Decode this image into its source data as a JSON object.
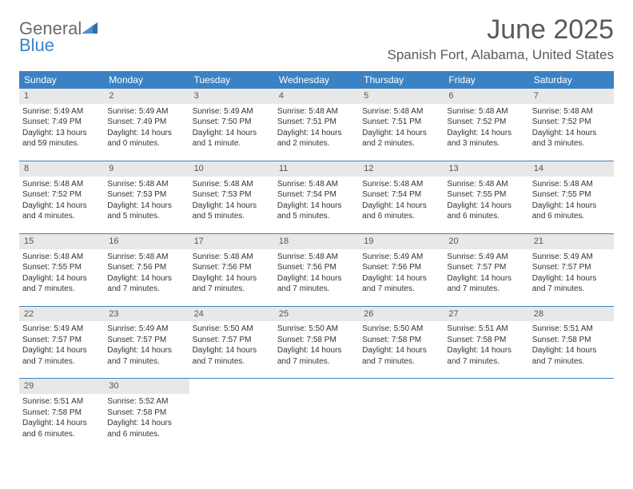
{
  "logo": {
    "text1": "General",
    "text2": "Blue"
  },
  "title": "June 2025",
  "location": "Spanish Fort, Alabama, United States",
  "colors": {
    "header_bg": "#3b82c4",
    "daynum_bg": "#e8e8e8",
    "text": "#333333",
    "title": "#5a5a5a"
  },
  "dayNames": [
    "Sunday",
    "Monday",
    "Tuesday",
    "Wednesday",
    "Thursday",
    "Friday",
    "Saturday"
  ],
  "weeks": [
    [
      {
        "n": "1",
        "sr": "Sunrise: 5:49 AM",
        "ss": "Sunset: 7:49 PM",
        "dl1": "Daylight: 13 hours",
        "dl2": "and 59 minutes."
      },
      {
        "n": "2",
        "sr": "Sunrise: 5:49 AM",
        "ss": "Sunset: 7:49 PM",
        "dl1": "Daylight: 14 hours",
        "dl2": "and 0 minutes."
      },
      {
        "n": "3",
        "sr": "Sunrise: 5:49 AM",
        "ss": "Sunset: 7:50 PM",
        "dl1": "Daylight: 14 hours",
        "dl2": "and 1 minute."
      },
      {
        "n": "4",
        "sr": "Sunrise: 5:48 AM",
        "ss": "Sunset: 7:51 PM",
        "dl1": "Daylight: 14 hours",
        "dl2": "and 2 minutes."
      },
      {
        "n": "5",
        "sr": "Sunrise: 5:48 AM",
        "ss": "Sunset: 7:51 PM",
        "dl1": "Daylight: 14 hours",
        "dl2": "and 2 minutes."
      },
      {
        "n": "6",
        "sr": "Sunrise: 5:48 AM",
        "ss": "Sunset: 7:52 PM",
        "dl1": "Daylight: 14 hours",
        "dl2": "and 3 minutes."
      },
      {
        "n": "7",
        "sr": "Sunrise: 5:48 AM",
        "ss": "Sunset: 7:52 PM",
        "dl1": "Daylight: 14 hours",
        "dl2": "and 3 minutes."
      }
    ],
    [
      {
        "n": "8",
        "sr": "Sunrise: 5:48 AM",
        "ss": "Sunset: 7:52 PM",
        "dl1": "Daylight: 14 hours",
        "dl2": "and 4 minutes."
      },
      {
        "n": "9",
        "sr": "Sunrise: 5:48 AM",
        "ss": "Sunset: 7:53 PM",
        "dl1": "Daylight: 14 hours",
        "dl2": "and 5 minutes."
      },
      {
        "n": "10",
        "sr": "Sunrise: 5:48 AM",
        "ss": "Sunset: 7:53 PM",
        "dl1": "Daylight: 14 hours",
        "dl2": "and 5 minutes."
      },
      {
        "n": "11",
        "sr": "Sunrise: 5:48 AM",
        "ss": "Sunset: 7:54 PM",
        "dl1": "Daylight: 14 hours",
        "dl2": "and 5 minutes."
      },
      {
        "n": "12",
        "sr": "Sunrise: 5:48 AM",
        "ss": "Sunset: 7:54 PM",
        "dl1": "Daylight: 14 hours",
        "dl2": "and 6 minutes."
      },
      {
        "n": "13",
        "sr": "Sunrise: 5:48 AM",
        "ss": "Sunset: 7:55 PM",
        "dl1": "Daylight: 14 hours",
        "dl2": "and 6 minutes."
      },
      {
        "n": "14",
        "sr": "Sunrise: 5:48 AM",
        "ss": "Sunset: 7:55 PM",
        "dl1": "Daylight: 14 hours",
        "dl2": "and 6 minutes."
      }
    ],
    [
      {
        "n": "15",
        "sr": "Sunrise: 5:48 AM",
        "ss": "Sunset: 7:55 PM",
        "dl1": "Daylight: 14 hours",
        "dl2": "and 7 minutes."
      },
      {
        "n": "16",
        "sr": "Sunrise: 5:48 AM",
        "ss": "Sunset: 7:56 PM",
        "dl1": "Daylight: 14 hours",
        "dl2": "and 7 minutes."
      },
      {
        "n": "17",
        "sr": "Sunrise: 5:48 AM",
        "ss": "Sunset: 7:56 PM",
        "dl1": "Daylight: 14 hours",
        "dl2": "and 7 minutes."
      },
      {
        "n": "18",
        "sr": "Sunrise: 5:48 AM",
        "ss": "Sunset: 7:56 PM",
        "dl1": "Daylight: 14 hours",
        "dl2": "and 7 minutes."
      },
      {
        "n": "19",
        "sr": "Sunrise: 5:49 AM",
        "ss": "Sunset: 7:56 PM",
        "dl1": "Daylight: 14 hours",
        "dl2": "and 7 minutes."
      },
      {
        "n": "20",
        "sr": "Sunrise: 5:49 AM",
        "ss": "Sunset: 7:57 PM",
        "dl1": "Daylight: 14 hours",
        "dl2": "and 7 minutes."
      },
      {
        "n": "21",
        "sr": "Sunrise: 5:49 AM",
        "ss": "Sunset: 7:57 PM",
        "dl1": "Daylight: 14 hours",
        "dl2": "and 7 minutes."
      }
    ],
    [
      {
        "n": "22",
        "sr": "Sunrise: 5:49 AM",
        "ss": "Sunset: 7:57 PM",
        "dl1": "Daylight: 14 hours",
        "dl2": "and 7 minutes."
      },
      {
        "n": "23",
        "sr": "Sunrise: 5:49 AM",
        "ss": "Sunset: 7:57 PM",
        "dl1": "Daylight: 14 hours",
        "dl2": "and 7 minutes."
      },
      {
        "n": "24",
        "sr": "Sunrise: 5:50 AM",
        "ss": "Sunset: 7:57 PM",
        "dl1": "Daylight: 14 hours",
        "dl2": "and 7 minutes."
      },
      {
        "n": "25",
        "sr": "Sunrise: 5:50 AM",
        "ss": "Sunset: 7:58 PM",
        "dl1": "Daylight: 14 hours",
        "dl2": "and 7 minutes."
      },
      {
        "n": "26",
        "sr": "Sunrise: 5:50 AM",
        "ss": "Sunset: 7:58 PM",
        "dl1": "Daylight: 14 hours",
        "dl2": "and 7 minutes."
      },
      {
        "n": "27",
        "sr": "Sunrise: 5:51 AM",
        "ss": "Sunset: 7:58 PM",
        "dl1": "Daylight: 14 hours",
        "dl2": "and 7 minutes."
      },
      {
        "n": "28",
        "sr": "Sunrise: 5:51 AM",
        "ss": "Sunset: 7:58 PM",
        "dl1": "Daylight: 14 hours",
        "dl2": "and 7 minutes."
      }
    ],
    [
      {
        "n": "29",
        "sr": "Sunrise: 5:51 AM",
        "ss": "Sunset: 7:58 PM",
        "dl1": "Daylight: 14 hours",
        "dl2": "and 6 minutes."
      },
      {
        "n": "30",
        "sr": "Sunrise: 5:52 AM",
        "ss": "Sunset: 7:58 PM",
        "dl1": "Daylight: 14 hours",
        "dl2": "and 6 minutes."
      },
      null,
      null,
      null,
      null,
      null
    ]
  ]
}
